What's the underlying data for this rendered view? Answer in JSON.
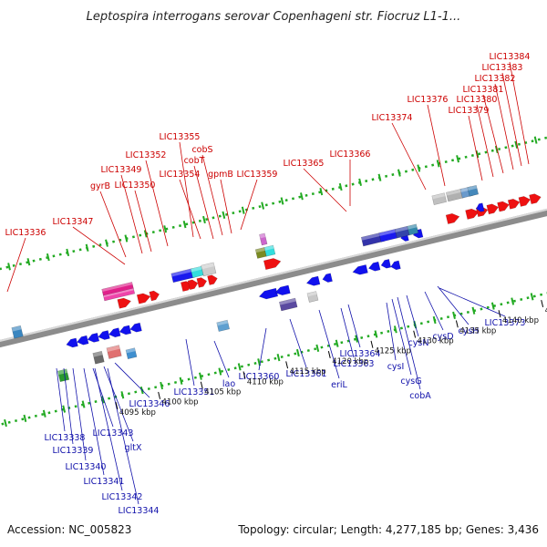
{
  "header": {
    "title": "Leptospira interrogans serovar Copenhageni str. Fiocruz L1-1..."
  },
  "footer": {
    "accession": "Accession: NC_005823",
    "summary": "Topology: circular; Length: 4,277,185 bp; Genes: 3,436"
  },
  "axis": {
    "ticks": [
      "4095 kbp",
      "4100 kbp",
      "4105 kbp",
      "4110 kbp",
      "4115 kbp",
      "4120 kbp",
      "4125 kbp",
      "4130 kbp",
      "4135 kbp",
      "4140 kbp",
      "4145 kbp"
    ]
  },
  "colors": {
    "forward": "#ee1111",
    "reverse": "#1111ee",
    "top_label": "#cc0000",
    "bottom_label": "#1010aa",
    "backbone": "#8c8c8c",
    "dots": "#22aa22"
  },
  "labels_top": [
    "LIC13336",
    "LIC13347",
    "gyrB",
    "LIC13349",
    "LIC13350",
    "LIC13352",
    "LIC13354",
    "LIC13355",
    "cobT",
    "cobS",
    "gpmB",
    "LIC13359",
    "LIC13365",
    "LIC13366",
    "LIC13374",
    "LIC13376",
    "LIC13379",
    "LIC13380",
    "LIC13381",
    "LIC13382",
    "LIC13383",
    "LIC13384"
  ],
  "labels_bottom": [
    "LIC13338",
    "LIC13339",
    "LIC13340",
    "LIC13341",
    "LIC13342",
    "LIC13344",
    "LIC13343",
    "gltX",
    "LIC13346",
    "LIC13351",
    "lao",
    "LIC13360",
    "LIC13361",
    "eriL",
    "LIC13363",
    "LIC13364",
    "cysI",
    "cysG",
    "cobA",
    "cysN",
    "cysD",
    "cysH",
    "LIC13373"
  ]
}
